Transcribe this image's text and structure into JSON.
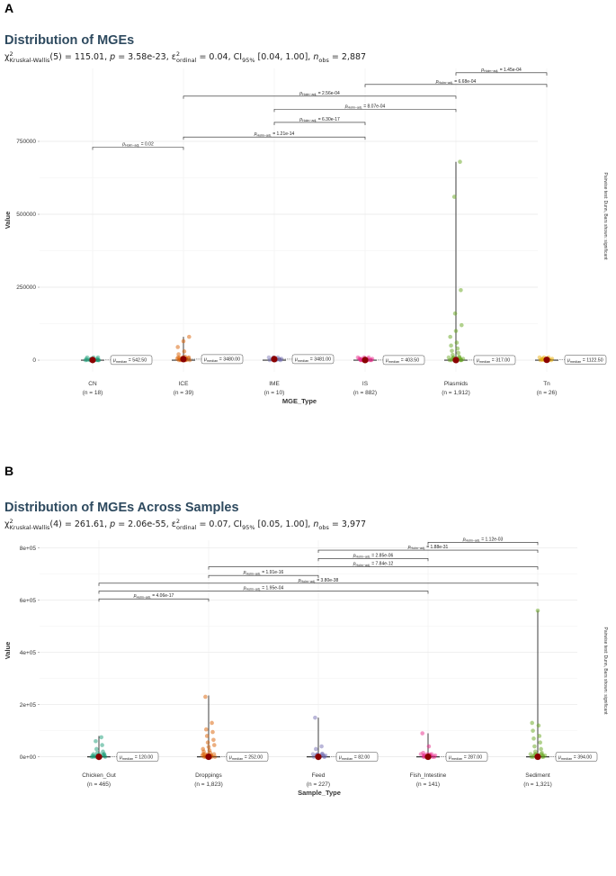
{
  "chart_data": [
    {
      "type": "scatter",
      "panel": "A",
      "title": "Distribution of MGEs",
      "subtitle_stat": {
        "test": "Kruskal-Wallis",
        "df": "5",
        "statistic": "115.01",
        "p": "3.58e-23",
        "effsize": "0.04",
        "ci": "[0.04, 1.00]",
        "n_obs": "2,887"
      },
      "xlabel": "MGE_Type",
      "ylabel": "Value",
      "side_caption": "Pairwise test: Dunn, Bars shown: significant",
      "ylim": [
        -40000,
        1000000
      ],
      "yticks": [
        0,
        250000,
        500000,
        750000
      ],
      "ytick_labels": [
        "0",
        "250000",
        "500000",
        "750000"
      ],
      "categories": [
        "CN",
        "ICE",
        "IME",
        "IS",
        "Plasmids",
        "Tn"
      ],
      "counts": [
        "(n = 18)",
        "(n = 39)",
        "(n = 10)",
        "(n = 882)",
        "(n = 1,912)",
        "(n = 26)"
      ],
      "medians": [
        542.5,
        3480.0,
        3481.0,
        403.5,
        317.0,
        1122.5
      ],
      "median_labels": [
        "542.50",
        "3480.00",
        "3481.00",
        "403.50",
        "317.00",
        "1122.50"
      ],
      "colors": [
        "#1b9e77",
        "#d95f02",
        "#7570b3",
        "#e7298a",
        "#66a61e",
        "#e6ab02"
      ],
      "whisker_max": [
        3000,
        80000,
        5000,
        6000,
        680000,
        4000
      ],
      "points": [
        [
          500,
          900,
          300,
          1500,
          700,
          2000,
          400,
          1200
        ],
        [
          1000,
          2500,
          5000,
          8000,
          12000,
          20000,
          30000,
          45000,
          65000,
          80000,
          3500,
          7000
        ],
        [
          1500,
          3000,
          4500,
          2500,
          3500
        ],
        [
          200,
          400,
          800,
          1500,
          2500,
          3500,
          5000,
          600,
          1000
        ],
        [
          200,
          500,
          1000,
          2000,
          5000,
          8000,
          12000,
          18000,
          25000,
          32000,
          40000,
          50000,
          60000,
          80000,
          100000,
          120000,
          160000,
          240000,
          560000,
          680000
        ],
        [
          500,
          1000,
          2000,
          3500,
          1500
        ]
      ],
      "comparisons": [
        {
          "from": 0,
          "to": 1,
          "y": 730000,
          "p": "0.02"
        },
        {
          "from": 1,
          "to": 3,
          "y": 765000,
          "p": "1.21e-14"
        },
        {
          "from": 2,
          "to": 3,
          "y": 815000,
          "p": "6.30e-17"
        },
        {
          "from": 2,
          "to": 4,
          "y": 860000,
          "p": "8.07e-04"
        },
        {
          "from": 1,
          "to": 4,
          "y": 905000,
          "p": "2.56e-04"
        },
        {
          "from": 3,
          "to": 5,
          "y": 945000,
          "p": "6.68e-04"
        },
        {
          "from": 4,
          "to": 5,
          "y": 985000,
          "p": "1.45e-04"
        }
      ]
    },
    {
      "type": "scatter",
      "panel": "B",
      "title": "Distribution of MGEs Across Samples",
      "subtitle_stat": {
        "test": "Kruskal-Wallis",
        "df": "4",
        "statistic": "261.61",
        "p": "2.06e-55",
        "effsize": "0.07",
        "ci": "[0.05, 1.00]",
        "n_obs": "3,977"
      },
      "xlabel": "Sample_Type",
      "ylabel": "Value",
      "side_caption": "Pairwise test: Dunn, Bars shown: significant",
      "ylim": [
        -15000,
        830000
      ],
      "yticks": [
        0,
        200000,
        400000,
        600000,
        800000
      ],
      "ytick_labels": [
        "0e+00",
        "2e+05",
        "4e+05",
        "6e+05",
        "8e+05"
      ],
      "categories": [
        "Chicken_Gut",
        "Droppings",
        "Feed",
        "Fish_Intestine",
        "Sediment"
      ],
      "counts": [
        "(n = 465)",
        "(n = 1,823)",
        "(n = 227)",
        "(n = 141)",
        "(n = 1,321)"
      ],
      "medians": [
        120.0,
        252.0,
        82.0,
        287.0,
        394.0
      ],
      "median_labels": [
        "120.00",
        "252.00",
        "82.00",
        "287.00",
        "394.00"
      ],
      "colors": [
        "#1b9e77",
        "#d95f02",
        "#7570b3",
        "#e7298a",
        "#66a61e"
      ],
      "whisker_max": [
        80000,
        235000,
        150000,
        90000,
        560000
      ],
      "points": [
        [
          500,
          1500,
          3000,
          6000,
          10000,
          15000,
          20000,
          30000,
          45000,
          60000,
          75000,
          2000
        ],
        [
          500,
          2000,
          5000,
          10000,
          15000,
          20000,
          25000,
          30000,
          38000,
          45000,
          55000,
          65000,
          80000,
          95000,
          105000,
          130000,
          230000
        ],
        [
          300,
          1000,
          2500,
          5000,
          8000,
          12000,
          30000,
          40000,
          150000
        ],
        [
          500,
          2000,
          5000,
          9000,
          15000,
          40000,
          90000
        ],
        [
          500,
          2000,
          5000,
          10000,
          15000,
          20000,
          30000,
          40000,
          55000,
          70000,
          80000,
          100000,
          120000,
          130000,
          560000
        ]
      ],
      "comparisons": [
        {
          "from": 0,
          "to": 1,
          "y": 605000,
          "p": "4.06e-17"
        },
        {
          "from": 0,
          "to": 3,
          "y": 635000,
          "p": "1.95e-04"
        },
        {
          "from": 0,
          "to": 4,
          "y": 665000,
          "p": "3.80e-38"
        },
        {
          "from": 1,
          "to": 2,
          "y": 695000,
          "p": "1.91e-16"
        },
        {
          "from": 1,
          "to": 4,
          "y": 728000,
          "p": "7.84e-12"
        },
        {
          "from": 2,
          "to": 3,
          "y": 760000,
          "p": "2.85e-06"
        },
        {
          "from": 2,
          "to": 4,
          "y": 792000,
          "p": "1.88e-31"
        },
        {
          "from": 3,
          "to": 4,
          "y": 822000,
          "p": "1.12e-03"
        }
      ]
    }
  ]
}
